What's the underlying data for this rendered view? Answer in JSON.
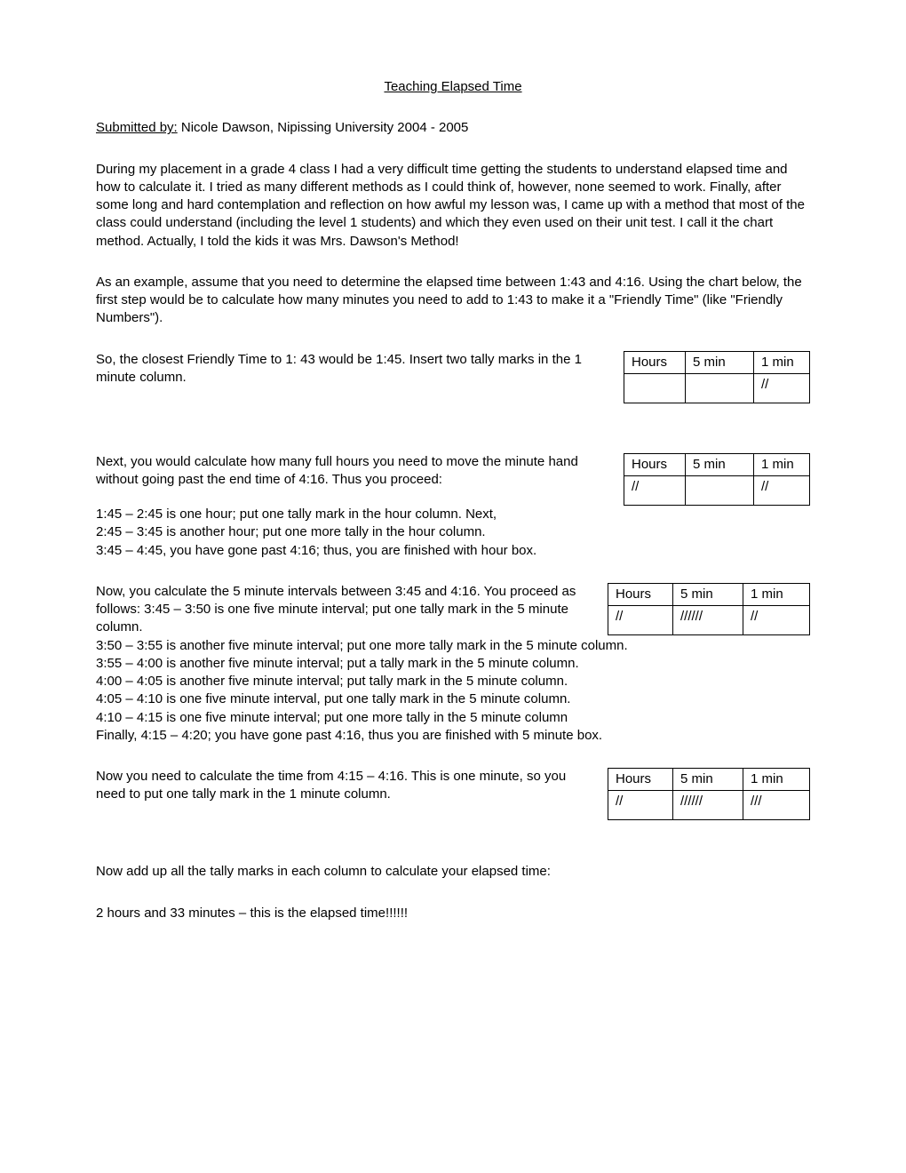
{
  "title": "Teaching Elapsed Time",
  "submitted_label": "Submitted by:",
  "submitted_value": " Nicole Dawson, Nipissing University 2004 - 2005",
  "intro_para1": "During my placement in a grade 4 class I had a very difficult time getting the students to understand elapsed time and how to calculate it.  I tried as many different methods as I could think of, however, none seemed to work.  Finally, after some long and hard contemplation and reflection on how awful my lesson was, I came up with a method that most of the class could understand (including the level 1 students) and which they even used on their unit test.  I call it the chart method.  Actually, I told the kids it was Mrs. Dawson's Method!",
  "intro_para2": "As an example, assume that you need to determine the elapsed time between 1:43 and 4:16.  Using the chart below, the first step would be to calculate how many minutes you need to add to 1:43 to make it a \"Friendly Time\" (like \"Friendly Numbers\").",
  "step1_text": "So, the closest Friendly Time to 1: 43 would be 1:45. Insert two tally marks in the 1 minute column.",
  "step2_text": "Next, you would calculate how many full hours you need to move the minute hand without going past the end time of 4:16. Thus you proceed:",
  "step2_line1": "1:45 – 2:45 is one hour; put one tally mark in the hour column. Next,",
  "step2_line2": "2:45 – 3:45 is another hour; put one more tally in the hour column.",
  "step2_line3": "3:45 – 4:45, you have gone past 4:16; thus, you are finished with hour box.",
  "step3_text": "Now, you calculate the 5 minute intervals between 3:45 and 4:16. You proceed as follows: 3:45 – 3:50 is one five minute interval; put one tally mark in the 5 minute column.",
  "step3_line1": "3:50 – 3:55 is another five minute interval; put one more tally mark in the 5 minute column.",
  "step3_line2": "3:55 – 4:00 is another five minute interval; put a tally mark in the 5 minute column.",
  "step3_line3": "4:00 – 4:05 is another five minute interval; put tally mark in the 5 minute column.",
  "step3_line4": "4:05 – 4:10 is one five minute interval, put one tally mark in the 5 minute column.",
  "step3_line5": "4:10 – 4:15 is one five minute interval; put one more tally in the 5 minute column",
  "step3_line6": "Finally, 4:15 – 4:20; you have gone past 4:16, thus you are finished with 5 minute box.",
  "step4_text": "Now you need to calculate the time from 4:15 – 4:16.  This is one minute, so you need to put one tally mark in the 1 minute column.",
  "final_text": "Now add up all the tally marks in each column to calculate your elapsed time:",
  "result_text": "2 hours and 33 minutes – this is the elapsed time!!!!!!",
  "table_headers": {
    "hours": "Hours",
    "fivemin": "5 min",
    "onemin": "1 min"
  },
  "table1": {
    "hours": "",
    "fivemin": "",
    "onemin": "//"
  },
  "table2": {
    "hours": "//",
    "fivemin": "",
    "onemin": "//"
  },
  "table3": {
    "hours": "//",
    "fivemin": "//////",
    "onemin": "//"
  },
  "table4": {
    "hours": "//",
    "fivemin": "//////",
    "onemin": "///"
  }
}
